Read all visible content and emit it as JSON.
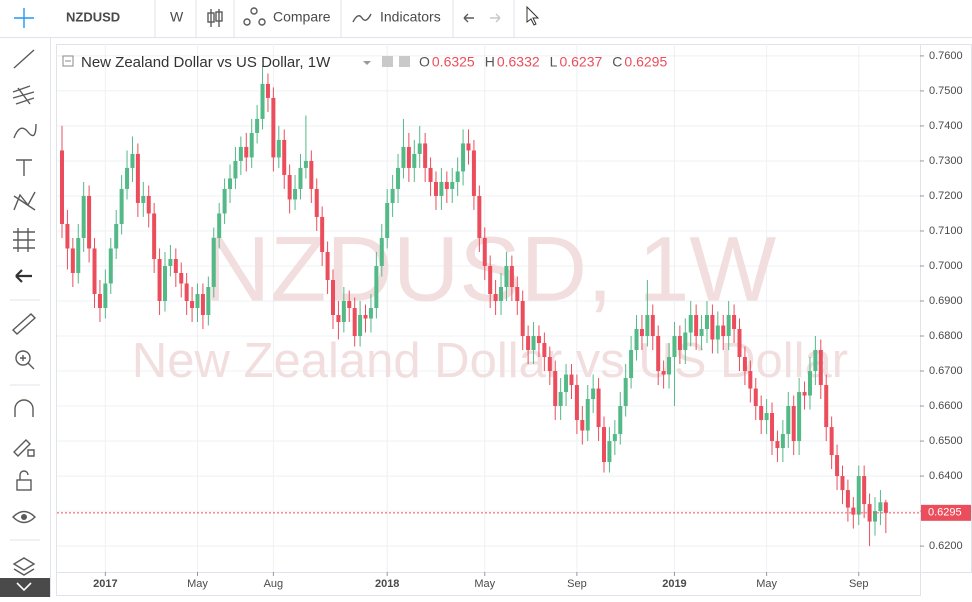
{
  "toolbar": {
    "symbol": "NZDUSD",
    "interval": "W",
    "compare": "Compare",
    "indicators": "Indicators"
  },
  "chart_data": {
    "type": "candlestick",
    "title": "New Zealand Dollar vs US Dollar, 1W",
    "watermark": "NZDUSD, 1W",
    "watermark_subtitle": "New Zealand Dollar vs US Dollar",
    "ohlc_labels": [
      "O",
      "H",
      "L",
      "C"
    ],
    "up_color": "#53b987",
    "down_color": "#eb4d5c",
    "grid": true,
    "categories": [
      null,
      null,
      null,
      null,
      null,
      null,
      null,
      null,
      "2017",
      null,
      null,
      null,
      null,
      null,
      null,
      null,
      null,
      null,
      null,
      null,
      null,
      null,
      null,
      null,
      null,
      "May",
      null,
      null,
      null,
      null,
      null,
      null,
      null,
      null,
      null,
      null,
      null,
      null,
      null,
      "Aug",
      null,
      null,
      null,
      null,
      null,
      null,
      null,
      null,
      null,
      null,
      null,
      null,
      null,
      null,
      null,
      null,
      null,
      null,
      null,
      null,
      "2018",
      null,
      null,
      null,
      null,
      null,
      null,
      null,
      null,
      null,
      null,
      null,
      null,
      null,
      null,
      null,
      null,
      null,
      "May",
      null,
      null,
      null,
      null,
      null,
      null,
      null,
      null,
      null,
      null,
      null,
      null,
      null,
      null,
      null,
      null,
      "Sep",
      null,
      null,
      null,
      null,
      null,
      null,
      null,
      null,
      null,
      null,
      null,
      null,
      null,
      null,
      null,
      null,
      null,
      "2019",
      null,
      null,
      null,
      null,
      null,
      null,
      null,
      null,
      null,
      null,
      null,
      null,
      null,
      null,
      null,
      null,
      "May",
      null,
      null,
      null,
      null,
      null,
      null,
      null,
      null,
      null,
      null,
      null,
      null,
      null,
      null,
      null,
      null,
      "Sep",
      null,
      null,
      null,
      null,
      null
    ],
    "open": [
      0.733,
      0.712,
      0.705,
      0.698,
      0.708,
      0.72,
      0.705,
      0.692,
      0.688,
      0.695,
      0.705,
      0.712,
      0.722,
      0.728,
      0.732,
      0.718,
      0.72,
      0.715,
      0.702,
      0.69,
      0.7,
      0.702,
      0.698,
      0.695,
      0.69,
      0.688,
      0.692,
      0.686,
      0.694,
      0.708,
      0.715,
      0.722,
      0.725,
      0.73,
      0.734,
      0.731,
      0.738,
      0.742,
      0.752,
      0.748,
      0.731,
      0.736,
      0.726,
      0.719,
      0.722,
      0.728,
      0.73,
      0.722,
      0.714,
      0.704,
      0.696,
      0.686,
      0.684,
      0.69,
      0.688,
      0.68,
      0.686,
      0.685,
      0.688,
      0.7,
      0.708,
      0.718,
      0.722,
      0.728,
      0.734,
      0.728,
      0.732,
      0.735,
      0.728,
      0.724,
      0.72,
      0.724,
      0.722,
      0.724,
      0.727,
      0.735,
      0.733,
      0.72,
      0.708,
      0.7,
      0.692,
      0.69,
      0.694,
      0.7,
      0.694,
      0.69,
      0.68,
      0.676,
      0.68,
      0.678,
      0.674,
      0.67,
      0.66,
      0.664,
      0.669,
      0.666,
      0.656,
      0.653,
      0.662,
      0.665,
      0.654,
      0.644,
      0.65,
      0.652,
      0.66,
      0.668,
      0.676,
      0.682,
      0.68,
      0.686,
      0.68,
      0.67,
      0.669,
      0.674,
      0.68,
      0.676,
      0.681,
      0.686,
      0.68,
      0.682,
      0.686,
      0.679,
      0.683,
      0.68,
      0.686,
      0.682,
      0.674,
      0.67,
      0.665,
      0.66,
      0.656,
      0.658,
      0.65,
      0.648,
      0.652,
      0.66,
      0.65,
      0.664,
      0.663,
      0.67,
      0.676,
      0.666,
      0.654,
      0.646,
      0.64,
      0.636,
      0.631,
      0.629,
      0.64,
      0.632,
      0.627,
      0.63,
      0.6325
    ],
    "high": [
      0.74,
      0.716,
      0.708,
      0.712,
      0.724,
      0.723,
      0.708,
      0.696,
      0.699,
      0.708,
      0.716,
      0.726,
      0.733,
      0.737,
      0.735,
      0.724,
      0.723,
      0.718,
      0.705,
      0.704,
      0.706,
      0.705,
      0.701,
      0.698,
      0.694,
      0.695,
      0.695,
      0.697,
      0.711,
      0.718,
      0.725,
      0.729,
      0.734,
      0.737,
      0.738,
      0.742,
      0.746,
      0.757,
      0.755,
      0.751,
      0.74,
      0.739,
      0.729,
      0.726,
      0.732,
      0.743,
      0.733,
      0.725,
      0.717,
      0.707,
      0.699,
      0.69,
      0.694,
      0.693,
      0.691,
      0.69,
      0.689,
      0.692,
      0.704,
      0.712,
      0.722,
      0.726,
      0.732,
      0.742,
      0.738,
      0.736,
      0.74,
      0.738,
      0.731,
      0.727,
      0.728,
      0.727,
      0.728,
      0.731,
      0.739,
      0.739,
      0.736,
      0.723,
      0.711,
      0.703,
      0.696,
      0.698,
      0.704,
      0.703,
      0.697,
      0.693,
      0.683,
      0.684,
      0.683,
      0.681,
      0.677,
      0.673,
      0.668,
      0.672,
      0.672,
      0.669,
      0.66,
      0.666,
      0.669,
      0.668,
      0.657,
      0.654,
      0.656,
      0.664,
      0.672,
      0.68,
      0.686,
      0.686,
      0.696,
      0.689,
      0.683,
      0.673,
      0.678,
      0.684,
      0.683,
      0.685,
      0.69,
      0.689,
      0.686,
      0.69,
      0.689,
      0.687,
      0.686,
      0.69,
      0.689,
      0.685,
      0.677,
      0.673,
      0.668,
      0.663,
      0.662,
      0.661,
      0.653,
      0.656,
      0.664,
      0.663,
      0.668,
      0.667,
      0.674,
      0.68,
      0.679,
      0.669,
      0.657,
      0.649,
      0.643,
      0.639,
      0.634,
      0.643,
      0.643,
      0.635,
      0.634,
      0.636,
      0.6332
    ],
    "low": [
      0.708,
      0.699,
      0.694,
      0.695,
      0.704,
      0.701,
      0.688,
      0.684,
      0.685,
      0.692,
      0.702,
      0.709,
      0.719,
      0.724,
      0.714,
      0.714,
      0.711,
      0.698,
      0.686,
      0.687,
      0.697,
      0.694,
      0.691,
      0.686,
      0.684,
      0.684,
      0.682,
      0.683,
      0.691,
      0.705,
      0.712,
      0.718,
      0.722,
      0.726,
      0.727,
      0.728,
      0.735,
      0.739,
      0.744,
      0.727,
      0.728,
      0.722,
      0.715,
      0.716,
      0.719,
      0.725,
      0.718,
      0.71,
      0.7,
      0.692,
      0.682,
      0.679,
      0.681,
      0.684,
      0.677,
      0.677,
      0.681,
      0.681,
      0.685,
      0.697,
      0.705,
      0.714,
      0.718,
      0.725,
      0.724,
      0.724,
      0.728,
      0.724,
      0.72,
      0.716,
      0.716,
      0.718,
      0.718,
      0.72,
      0.723,
      0.729,
      0.716,
      0.704,
      0.696,
      0.688,
      0.686,
      0.686,
      0.69,
      0.69,
      0.686,
      0.676,
      0.672,
      0.672,
      0.674,
      0.67,
      0.666,
      0.656,
      0.656,
      0.66,
      0.662,
      0.652,
      0.649,
      0.65,
      0.658,
      0.65,
      0.641,
      0.641,
      0.646,
      0.649,
      0.657,
      0.665,
      0.673,
      0.676,
      0.677,
      0.676,
      0.666,
      0.665,
      0.665,
      0.66,
      0.672,
      0.672,
      0.677,
      0.676,
      0.676,
      0.678,
      0.675,
      0.675,
      0.676,
      0.676,
      0.678,
      0.67,
      0.666,
      0.661,
      0.656,
      0.652,
      0.652,
      0.646,
      0.644,
      0.644,
      0.648,
      0.646,
      0.646,
      0.659,
      0.659,
      0.666,
      0.662,
      0.65,
      0.642,
      0.636,
      0.632,
      0.627,
      0.625,
      0.626,
      0.628,
      0.62,
      0.623,
      0.626,
      0.6237
    ],
    "close": [
      0.712,
      0.705,
      0.698,
      0.708,
      0.72,
      0.705,
      0.692,
      0.688,
      0.695,
      0.705,
      0.712,
      0.722,
      0.728,
      0.732,
      0.718,
      0.72,
      0.715,
      0.702,
      0.69,
      0.7,
      0.702,
      0.698,
      0.695,
      0.69,
      0.688,
      0.692,
      0.686,
      0.694,
      0.708,
      0.715,
      0.722,
      0.725,
      0.73,
      0.734,
      0.731,
      0.738,
      0.742,
      0.752,
      0.748,
      0.731,
      0.736,
      0.726,
      0.719,
      0.722,
      0.728,
      0.73,
      0.722,
      0.714,
      0.704,
      0.696,
      0.686,
      0.684,
      0.69,
      0.688,
      0.68,
      0.686,
      0.685,
      0.688,
      0.7,
      0.708,
      0.718,
      0.722,
      0.728,
      0.734,
      0.728,
      0.732,
      0.735,
      0.728,
      0.724,
      0.72,
      0.724,
      0.722,
      0.724,
      0.727,
      0.735,
      0.733,
      0.72,
      0.708,
      0.7,
      0.692,
      0.69,
      0.694,
      0.7,
      0.694,
      0.69,
      0.68,
      0.676,
      0.68,
      0.678,
      0.674,
      0.67,
      0.66,
      0.664,
      0.669,
      0.666,
      0.656,
      0.653,
      0.662,
      0.665,
      0.654,
      0.644,
      0.65,
      0.652,
      0.66,
      0.668,
      0.676,
      0.682,
      0.68,
      0.686,
      0.68,
      0.67,
      0.669,
      0.674,
      0.68,
      0.676,
      0.681,
      0.686,
      0.68,
      0.682,
      0.686,
      0.679,
      0.683,
      0.68,
      0.686,
      0.682,
      0.674,
      0.67,
      0.665,
      0.66,
      0.656,
      0.658,
      0.65,
      0.648,
      0.652,
      0.66,
      0.65,
      0.664,
      0.663,
      0.67,
      0.676,
      0.666,
      0.654,
      0.646,
      0.64,
      0.636,
      0.631,
      0.629,
      0.64,
      0.632,
      0.627,
      0.63,
      0.6325,
      0.6295
    ],
    "ylim": [
      0.6126,
      0.7634
    ],
    "yticks": [
      {
        "value": 0.62,
        "label": "0.6200"
      },
      {
        "value": 0.63,
        "label": "0.6300"
      },
      {
        "value": 0.64,
        "label": "0.6400"
      },
      {
        "value": 0.65,
        "label": "0.6500"
      },
      {
        "value": 0.66,
        "label": "0.6600"
      },
      {
        "value": 0.67,
        "label": "0.6700"
      },
      {
        "value": 0.68,
        "label": "0.6800"
      },
      {
        "value": 0.69,
        "label": "0.6900"
      },
      {
        "value": 0.7,
        "label": "0.7000"
      },
      {
        "value": 0.71,
        "label": "0.7100"
      },
      {
        "value": 0.72,
        "label": "0.7200"
      },
      {
        "value": 0.73,
        "label": "0.7300"
      },
      {
        "value": 0.74,
        "label": "0.7400"
      },
      {
        "value": 0.75,
        "label": "0.7500"
      },
      {
        "value": 0.76,
        "label": "0.7600"
      }
    ]
  }
}
